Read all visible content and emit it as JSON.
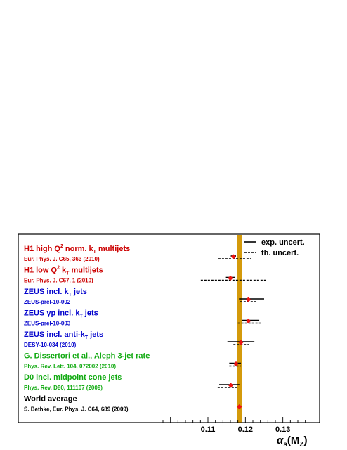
{
  "chart_data": {
    "type": "scatter",
    "title": "",
    "xlabel": "α",
    "xlabel_sub": "s",
    "xlabel_tail": "(M",
    "xlabel_sub2": "Z",
    "xlabel_close": ")",
    "xlim": [
      0.098,
      0.137
    ],
    "tick_labels": [
      {
        "value": 0.11,
        "text": "0.11"
      },
      {
        "value": 0.12,
        "text": "0.12"
      },
      {
        "value": 0.13,
        "text": "0.13"
      }
    ],
    "world_average_band": {
      "value": 0.1184,
      "err": 0.0007,
      "color": "#d49a0b"
    },
    "legend": {
      "placement": "top-right",
      "items": [
        {
          "key": "exp",
          "text": "exp. uncert."
        },
        {
          "key": "th",
          "text": "th. uncert."
        }
      ]
    },
    "marker_color": "#ee1111",
    "points": [
      {
        "label": "H1 high Q",
        "sup": "2",
        "label_tail": " norm. k",
        "sub": "T",
        "label_end": " multijets",
        "ref": "Eur. Phys. J. C65, 363 (2010)",
        "color": "#cc0000",
        "value": 0.1168,
        "exp": [
          0.1161,
          0.1175
        ],
        "th": [
          0.1128,
          0.1215
        ]
      },
      {
        "label": "H1 low Q",
        "sup": "2",
        "label_tail": " k",
        "sub": "T",
        "label_end": " multijets",
        "ref": "Eur. Phys. J. C67, 1 (2010)",
        "color": "#cc0000",
        "value": 0.116,
        "exp": [
          0.1148,
          0.1172
        ],
        "th": [
          0.1081,
          0.1257
        ]
      },
      {
        "label": "ZEUS incl. k",
        "sup": "",
        "label_tail": "",
        "sub": "T",
        "label_end": " jets",
        "ref": "ZEUS-prel-10-002",
        "color": "#0000cc",
        "value": 0.1208,
        "exp": [
          0.1183,
          0.125
        ],
        "th": [
          0.1186,
          0.1228
        ]
      },
      {
        "label": "ZEUS γp incl. k",
        "sup": "",
        "label_tail": "",
        "sub": "T",
        "label_end": " jets",
        "ref": "ZEUS-prel-10-003",
        "color": "#0000cc",
        "value": 0.1208,
        "exp": [
          0.119,
          0.1237
        ],
        "th": [
          0.118,
          0.1245
        ]
      },
      {
        "label": "ZEUS incl. anti-k",
        "sup": "",
        "label_tail": "",
        "sub": "T",
        "label_end": " jets",
        "ref": "DESY-10-034 (2010)",
        "color": "#0000cc",
        "value": 0.1188,
        "exp": [
          0.1152,
          0.1224
        ],
        "th": [
          0.1168,
          0.1209
        ]
      },
      {
        "label": "G. Dissertori et al., Aleph 3-jet rate",
        "sup": "",
        "label_tail": "",
        "sub": "",
        "label_end": "",
        "ref": "Phys. Rev. Lett. 104, 072002 (2010)",
        "color": "#11aa11",
        "value": 0.1175,
        "exp": [
          0.1157,
          0.1188
        ],
        "th": [
          0.1157,
          0.1188
        ]
      },
      {
        "label": "D0 incl. midpoint cone jets",
        "sup": "",
        "label_tail": "",
        "sub": "",
        "label_end": "",
        "ref": "Phys. Rev. D80, 111107 (2009)",
        "color": "#11aa11",
        "value": 0.1161,
        "exp": [
          0.113,
          0.1184
        ],
        "th": [
          0.1126,
          0.118
        ]
      },
      {
        "label": "World average",
        "sup": "",
        "label_tail": "",
        "sub": "",
        "label_end": "",
        "ref": "S. Bethke, Eur. Phys. J. C64, 689 (2009)",
        "color": "#000000",
        "value": 0.1184,
        "exp": null,
        "th": null
      }
    ]
  }
}
